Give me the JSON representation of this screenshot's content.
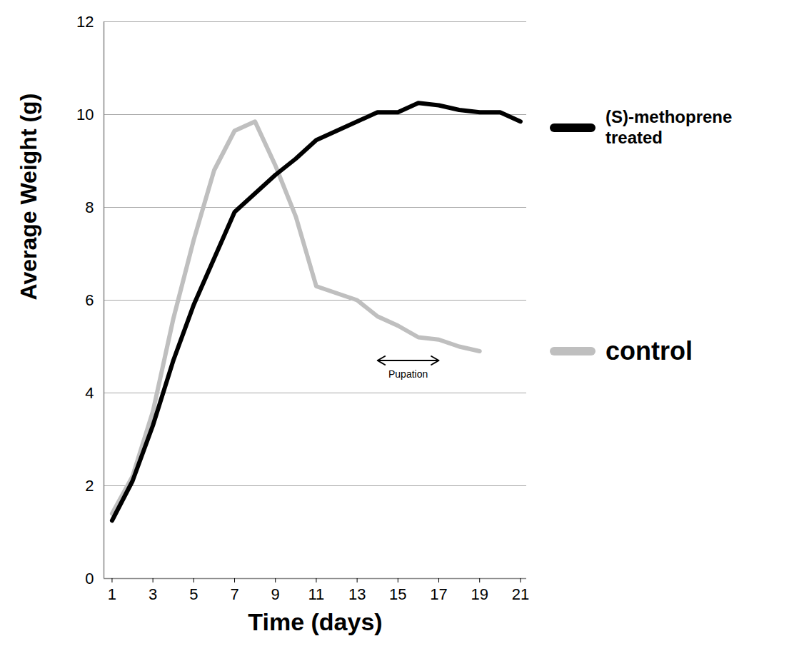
{
  "chart_data": {
    "type": "line",
    "x_label": "Time (days)",
    "y_label": "Average Weight (g)",
    "x": [
      1,
      2,
      3,
      4,
      5,
      6,
      7,
      8,
      9,
      10,
      11,
      12,
      13,
      14,
      15,
      16,
      17,
      18,
      19,
      20,
      21
    ],
    "series": [
      {
        "name": "(S)-methoprene treated",
        "color": "#000000",
        "values": [
          1.25,
          2.1,
          3.3,
          4.7,
          5.9,
          6.9,
          7.9,
          8.3,
          8.7,
          9.05,
          9.45,
          9.65,
          9.85,
          10.05,
          10.05,
          10.25,
          10.2,
          10.1,
          10.05,
          10.05,
          9.85
        ]
      },
      {
        "name": "control",
        "color": "#bfbfbf",
        "values": [
          1.4,
          2.2,
          3.6,
          5.6,
          7.3,
          8.8,
          9.65,
          9.85,
          8.9,
          7.8,
          6.3,
          6.15,
          6.0,
          5.65,
          5.45,
          5.2,
          5.15,
          5.0,
          4.9,
          null,
          null
        ]
      }
    ],
    "xlim": [
      0.6,
      21.3
    ],
    "xticks": [
      1,
      3,
      5,
      7,
      9,
      11,
      13,
      15,
      17,
      19,
      21
    ],
    "ylim": [
      0,
      12
    ],
    "yticks": [
      0,
      2,
      4,
      6,
      8,
      10,
      12
    ],
    "grid": true,
    "legend": "right",
    "annotations": [
      {
        "text": "Pupation",
        "x_range": [
          14,
          17
        ],
        "y": 4.7
      }
    ]
  }
}
